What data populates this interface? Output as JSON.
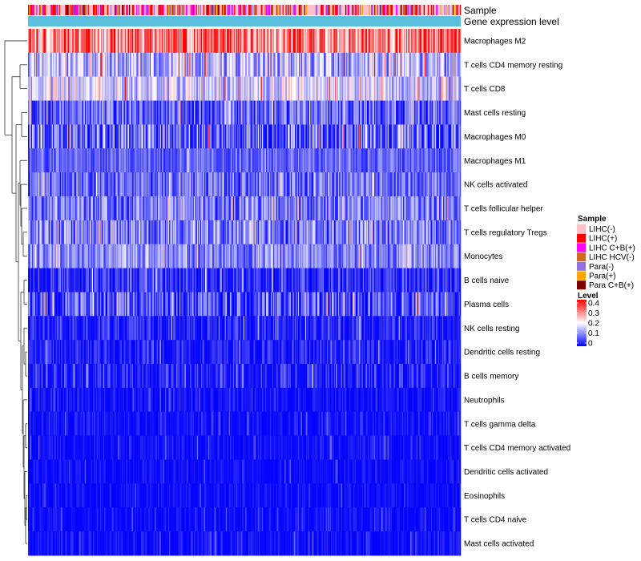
{
  "chart_data": {
    "type": "heatmap",
    "title": "",
    "annotation_tracks": [
      "Sample",
      "Gene expression level"
    ],
    "rows": [
      {
        "name": "Macrophages M2",
        "mean": 0.3,
        "spread": 0.12
      },
      {
        "name": "T cells CD4 memory resting",
        "mean": 0.14,
        "spread": 0.1
      },
      {
        "name": "T cells CD8",
        "mean": 0.17,
        "spread": 0.09
      },
      {
        "name": "Mast cells resting",
        "mean": 0.07,
        "spread": 0.08
      },
      {
        "name": "Macrophages M0",
        "mean": 0.07,
        "spread": 0.12
      },
      {
        "name": "Macrophages M1",
        "mean": 0.075,
        "spread": 0.05
      },
      {
        "name": "NK cells activated",
        "mean": 0.08,
        "spread": 0.07
      },
      {
        "name": "T cells follicular helper",
        "mean": 0.09,
        "spread": 0.08
      },
      {
        "name": "T cells regulatory  Tregs",
        "mean": 0.09,
        "spread": 0.09
      },
      {
        "name": "Monocytes",
        "mean": 0.1,
        "spread": 0.07
      },
      {
        "name": "B cells naive",
        "mean": 0.03,
        "spread": 0.07
      },
      {
        "name": "Plasma cells",
        "mean": 0.06,
        "spread": 0.09
      },
      {
        "name": "NK cells resting",
        "mean": 0.02,
        "spread": 0.06
      },
      {
        "name": "Dendritic cells resting",
        "mean": 0.02,
        "spread": 0.05
      },
      {
        "name": "B cells memory",
        "mean": 0.02,
        "spread": 0.06
      },
      {
        "name": "Neutrophils",
        "mean": 0.012,
        "spread": 0.03
      },
      {
        "name": "T cells gamma delta",
        "mean": 0.005,
        "spread": 0.04
      },
      {
        "name": "T cells CD4 memory activated",
        "mean": 0.005,
        "spread": 0.04
      },
      {
        "name": "Dendritic cells activated",
        "mean": 0.004,
        "spread": 0.03
      },
      {
        "name": "Eosinophils",
        "mean": 0.003,
        "spread": 0.03
      },
      {
        "name": "T cells CD4 naive",
        "mean": 0.003,
        "spread": 0.03
      },
      {
        "name": "Mast cells activated",
        "mean": 0.004,
        "spread": 0.04
      }
    ],
    "n_samples": 420,
    "sample_legend": {
      "title": "Sample",
      "entries": [
        {
          "label": "LIHC(-)",
          "color": "#ffc0cb"
        },
        {
          "label": "LIHC(+)",
          "color": "#ff0000"
        },
        {
          "label": "LIHC C+B(+)",
          "color": "#ff00ff"
        },
        {
          "label": "LIHC HCV(-)",
          "color": "#d2691e"
        },
        {
          "label": "Para(-)",
          "color": "#9370db"
        },
        {
          "label": "Para(+)",
          "color": "#ffa500"
        },
        {
          "label": "Para C+B(+)",
          "color": "#800000"
        }
      ]
    },
    "level_legend": {
      "title": "Level",
      "ticks": [
        "0.4",
        "0.3",
        "0.2",
        "0.1",
        "0"
      ],
      "min": 0,
      "max": 0.4
    },
    "expression_level_color": "#5bc0de",
    "color_scale": {
      "low": "#0000ff",
      "mid": "#ffffff",
      "high": "#ff0000",
      "mid_value": 0.2
    }
  }
}
